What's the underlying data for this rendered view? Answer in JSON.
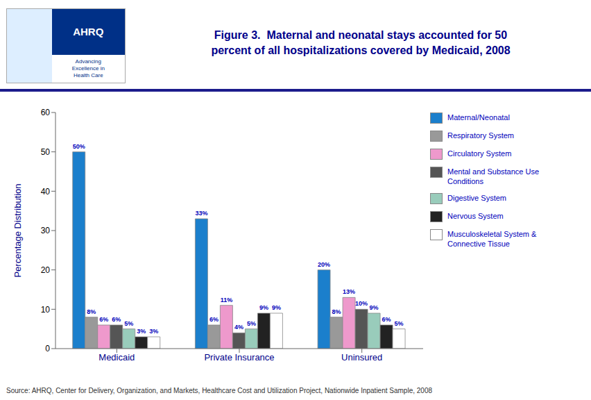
{
  "chart_data": {
    "type": "bar",
    "title": "Figure 3.  Maternal and neonatal stays accounted for 50\npercent of all hospitalizations covered by Medicaid, 2008",
    "ylabel": "Percentage Distribution",
    "categories": [
      "Medicaid",
      "Private Insurance",
      "Uninsured"
    ],
    "series": [
      {
        "name": "Maternal/Neonatal",
        "color": "#1B7FCC",
        "values": [
          50,
          33,
          20
        ],
        "value_labels": [
          "50%",
          "33%",
          "20%"
        ]
      },
      {
        "name": "Respiratory System",
        "color": "#999999",
        "values": [
          8,
          6,
          8
        ],
        "value_labels": [
          "8%",
          "6%",
          "8%"
        ]
      },
      {
        "name": "Circulatory System",
        "color": "#EE99CC",
        "values": [
          6,
          11,
          13
        ],
        "value_labels": [
          "6%",
          "11%",
          "13%"
        ]
      },
      {
        "name": "Mental and Substance Use\nConditions",
        "color": "#555555",
        "values": [
          6,
          4,
          10
        ],
        "value_labels": [
          "6%",
          "4%",
          "10%"
        ]
      },
      {
        "name": "Digestive System",
        "color": "#99CCBB",
        "values": [
          5,
          5,
          9
        ],
        "value_labels": [
          "5%",
          "5%",
          "9%"
        ]
      },
      {
        "name": "Nervous System",
        "color": "#222222",
        "values": [
          3,
          9,
          6
        ],
        "value_labels": [
          "3%",
          "9%",
          "6%"
        ]
      },
      {
        "name": "Musculoskeletal System &\nConnective Tissue",
        "color": "#FFFFFF",
        "values": [
          3,
          9,
          5
        ],
        "value_labels": [
          "3%",
          "9%",
          "5%"
        ]
      }
    ],
    "ylim": [
      0,
      60
    ],
    "yticks": [
      0,
      10,
      20,
      30,
      40,
      50,
      60
    ],
    "grid": false,
    "data_labels": true,
    "legend": "right",
    "annotations": [
      "AHRQ",
      "Advancing\nExcellence in\nHealth Care",
      "Source:  AHRQ, Center for Delivery, Organization, and Markets, Healthcare Cost and Utilization Project, Nationwide Inpatient Sample, 2008"
    ]
  }
}
